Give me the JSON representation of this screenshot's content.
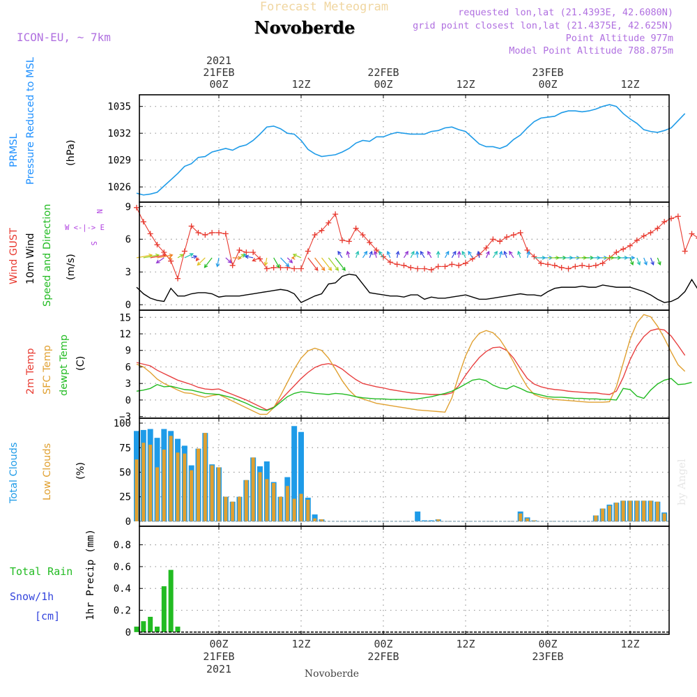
{
  "header": {
    "meteogram_title": "Forecast Meteogram",
    "station": "Novoberde",
    "model": "ICON-EU, ~ 7km",
    "info_lines": [
      "requested lon,lat (21.4393E, 42.6080N)",
      "grid point closest lon,lat (21.4375E, 42.625N)",
      "Point Altitude 977m",
      "Model Point Altitude 788.875m"
    ],
    "watermark": "by Angel"
  },
  "time_axis": {
    "top_year": "2021",
    "bottom_year": "2021",
    "ticks": [
      "00Z",
      "12Z",
      "00Z",
      "12Z",
      "00Z",
      "12Z"
    ],
    "date_labels": [
      "21FEB",
      "22FEB",
      "23FEB"
    ],
    "footer_station": "Novoberde"
  },
  "panels": {
    "pressure": {
      "labels": [
        "PRMSL",
        "Pressure Reduced to MSL"
      ],
      "unit": "(hPa)",
      "label_colors": [
        "#1e90ff",
        "#1e90ff"
      ]
    },
    "wind": {
      "labels": [
        "Wind GUST",
        "10m Wind",
        "Speed and Direction"
      ],
      "unit": "(m/s)",
      "label_colors": [
        "#e8392f",
        "#000000",
        "#22bb22"
      ],
      "compass": [
        "N",
        "W <-|-> E",
        "S"
      ]
    },
    "temp": {
      "labels": [
        "2m Temp",
        "SFC Temp",
        "dewpt Temp"
      ],
      "unit": "(C)",
      "label_colors": [
        "#e8392f",
        "#e0a030",
        "#22bb22"
      ]
    },
    "clouds": {
      "labels": [
        "Total Clouds",
        "Low Clouds"
      ],
      "unit": "(%)",
      "label_colors": [
        "#1e9be8",
        "#e0a030"
      ]
    },
    "precip": {
      "labels": [
        "Total Rain",
        "Snow/1h",
        "[cm]"
      ],
      "ylabel": "1hr Precip (mm)",
      "label_colors": [
        "#22bb22",
        "#3344dd",
        "#3344dd"
      ]
    }
  },
  "chart_data": [
    {
      "type": "line",
      "title": "PRMSL Pressure Reduced to MSL",
      "ylabel": "(hPa)",
      "ylim": [
        1024.3,
        1036.3
      ],
      "yticks": [
        1026,
        1029,
        1032,
        1035
      ],
      "grid": true,
      "series": [
        {
          "name": "PRMSL",
          "color": "#1e9be8",
          "values": [
            1025.3,
            1025.1,
            1025.2,
            1025.4,
            1026.1,
            1026.8,
            1027.5,
            1028.3,
            1028.6,
            1029.3,
            1029.4,
            1029.9,
            1030.1,
            1030.3,
            1030.1,
            1030.5,
            1030.7,
            1031.2,
            1031.9,
            1032.7,
            1032.8,
            1032.5,
            1032.0,
            1031.9,
            1031.2,
            1030.2,
            1029.7,
            1029.4,
            1029.5,
            1029.6,
            1029.9,
            1030.3,
            1030.9,
            1031.2,
            1031.1,
            1031.6,
            1031.6,
            1031.9,
            1032.1,
            1032.0,
            1031.9,
            1031.9,
            1031.9,
            1032.2,
            1032.3,
            1032.6,
            1032.7,
            1032.4,
            1032.2,
            1031.5,
            1030.8,
            1030.5,
            1030.5,
            1030.3,
            1030.6,
            1031.3,
            1031.8,
            1032.6,
            1033.3,
            1033.7,
            1033.8,
            1033.9,
            1034.3,
            1034.5,
            1034.5,
            1034.4,
            1034.5,
            1034.7,
            1035.0,
            1035.2,
            1035.0,
            1034.2,
            1033.6,
            1033.1,
            1032.4,
            1032.2,
            1032.1,
            1032.3,
            1032.6,
            1033.4,
            1034.2
          ]
        }
      ]
    },
    {
      "type": "line",
      "title": "Wind GUST / 10m Wind",
      "ylabel": "(m/s)",
      "ylim": [
        -0.5,
        9.4
      ],
      "yticks": [
        0,
        3,
        6,
        9
      ],
      "grid": true,
      "series": [
        {
          "name": "Wind GUST",
          "color": "#e8392f",
          "values": [
            8.9,
            7.6,
            6.5,
            5.5,
            4.8,
            4.0,
            2.4,
            4.9,
            7.2,
            6.6,
            6.4,
            6.6,
            6.6,
            6.5,
            3.6,
            5.0,
            4.8,
            4.8,
            4.2,
            3.3,
            3.4,
            3.4,
            3.4,
            3.3,
            3.3,
            4.9,
            6.4,
            6.8,
            7.5,
            8.3,
            5.9,
            5.8,
            7.0,
            6.4,
            5.7,
            5.0,
            4.4,
            3.9,
            3.7,
            3.6,
            3.4,
            3.3,
            3.3,
            3.2,
            3.5,
            3.5,
            3.7,
            3.6,
            3.8,
            4.2,
            4.6,
            5.2,
            6.0,
            5.8,
            6.2,
            6.4,
            6.6,
            5.0,
            4.4,
            3.8,
            3.7,
            3.6,
            3.4,
            3.3,
            3.5,
            3.6,
            3.5,
            3.6,
            3.8,
            4.3,
            4.8,
            5.1,
            5.4,
            5.9,
            6.3,
            6.6,
            7.0,
            7.6,
            7.9,
            8.1,
            4.9,
            6.5,
            6.1,
            7.4
          ]
        },
        {
          "name": "10m Wind",
          "color": "#000000",
          "values": [
            1.6,
            1.0,
            0.6,
            0.4,
            0.3,
            1.5,
            0.8,
            0.8,
            1.0,
            1.1,
            1.1,
            1.0,
            0.7,
            0.8,
            0.8,
            0.8,
            0.9,
            1.0,
            1.1,
            1.2,
            1.3,
            1.4,
            1.3,
            1.0,
            0.2,
            0.5,
            0.8,
            1.0,
            1.9,
            2.0,
            2.6,
            2.8,
            2.7,
            1.9,
            1.1,
            1.0,
            0.9,
            0.8,
            0.8,
            0.7,
            0.9,
            0.9,
            0.5,
            0.7,
            0.6,
            0.6,
            0.7,
            0.8,
            0.9,
            0.7,
            0.5,
            0.5,
            0.6,
            0.7,
            0.8,
            0.9,
            1.0,
            0.9,
            0.9,
            0.8,
            1.2,
            1.5,
            1.6,
            1.6,
            1.6,
            1.7,
            1.6,
            1.6,
            1.8,
            1.7,
            1.6,
            1.6,
            1.6,
            1.4,
            1.2,
            0.9,
            0.5,
            0.2,
            0.3,
            0.6,
            1.2,
            2.3,
            1.3,
            1.1,
            1.1
          ]
        }
      ]
    },
    {
      "type": "line",
      "title": "2m Temp / SFC Temp / dewpt Temp",
      "ylabel": "(C)",
      "ylim": [
        -3.3,
        16.3
      ],
      "yticks": [
        -3,
        0,
        3,
        6,
        9,
        12,
        15
      ],
      "grid": true,
      "series": [
        {
          "name": "2m Temp",
          "color": "#e84040",
          "values": [
            6.8,
            6.5,
            6.2,
            5.4,
            4.8,
            4.2,
            3.6,
            3.2,
            2.8,
            2.3,
            2.0,
            1.9,
            2.0,
            1.5,
            1.0,
            0.5,
            0.0,
            -0.6,
            -1.2,
            -1.8,
            -1.3,
            0.0,
            1.3,
            2.6,
            3.9,
            5.0,
            5.9,
            6.4,
            6.6,
            6.3,
            5.6,
            4.6,
            3.7,
            3.0,
            2.7,
            2.4,
            2.2,
            1.9,
            1.7,
            1.5,
            1.3,
            1.2,
            1.1,
            1.0,
            1.0,
            1.0,
            1.3,
            2.6,
            4.5,
            6.2,
            7.7,
            8.8,
            9.5,
            9.6,
            9.0,
            7.6,
            5.7,
            3.9,
            2.9,
            2.4,
            2.1,
            1.9,
            1.8,
            1.6,
            1.5,
            1.4,
            1.3,
            1.3,
            1.1,
            1.0,
            1.6,
            4.1,
            7.3,
            9.8,
            11.5,
            12.6,
            12.9,
            12.7,
            11.6,
            9.9,
            8.1
          ]
        },
        {
          "name": "SFC Temp",
          "color": "#e0a030",
          "values": [
            6.5,
            6.0,
            5.0,
            3.8,
            3.0,
            2.4,
            1.8,
            1.3,
            1.2,
            0.8,
            0.5,
            0.8,
            1.0,
            0.4,
            -0.2,
            -0.8,
            -1.4,
            -2.0,
            -2.6,
            -2.6,
            -1.4,
            0.8,
            3.2,
            5.6,
            7.6,
            8.9,
            9.4,
            9.0,
            7.6,
            5.6,
            3.5,
            1.8,
            0.6,
            0.2,
            -0.2,
            -0.6,
            -0.8,
            -1.0,
            -1.2,
            -1.4,
            -1.6,
            -1.8,
            -1.9,
            -2.0,
            -2.1,
            -2.2,
            0.4,
            4.4,
            8.0,
            10.6,
            12.1,
            12.6,
            12.2,
            11.0,
            9.1,
            6.9,
            4.5,
            2.4,
            1.0,
            0.5,
            0.3,
            0.1,
            0.0,
            -0.1,
            -0.2,
            -0.3,
            -0.4,
            -0.4,
            -0.4,
            -0.3,
            2.4,
            6.7,
            11.0,
            14.0,
            15.5,
            15.1,
            13.4,
            11.2,
            8.7,
            6.4,
            5.2
          ]
        },
        {
          "name": "dewpt Temp",
          "color": "#22bb22",
          "values": [
            1.6,
            1.8,
            2.1,
            2.8,
            2.4,
            2.5,
            2.2,
            1.9,
            1.8,
            1.5,
            1.2,
            1.1,
            1.0,
            0.7,
            0.4,
            -0.1,
            -0.6,
            -1.2,
            -1.7,
            -1.9,
            -1.4,
            -0.4,
            0.6,
            1.2,
            1.5,
            1.4,
            1.2,
            1.1,
            1.0,
            1.2,
            1.1,
            0.9,
            0.6,
            0.4,
            0.3,
            0.2,
            0.2,
            0.1,
            0.1,
            0.1,
            0.1,
            0.2,
            0.4,
            0.6,
            0.9,
            1.2,
            1.6,
            2.2,
            2.9,
            3.6,
            3.8,
            3.5,
            2.7,
            2.2,
            2.0,
            2.6,
            2.1,
            1.5,
            1.2,
            0.9,
            0.6,
            0.5,
            0.5,
            0.4,
            0.3,
            0.3,
            0.2,
            0.2,
            0.1,
            0.1,
            0.0,
            2.1,
            1.9,
            0.7,
            0.3,
            1.8,
            2.9,
            3.6,
            3.9,
            2.8,
            2.9,
            3.2
          ]
        }
      ]
    },
    {
      "type": "bar",
      "title": "Total Clouds / Low Clouds",
      "ylabel": "(%)",
      "ylim": [
        -5,
        105
      ],
      "yticks": [
        0,
        25,
        50,
        75,
        100
      ],
      "grid": true,
      "series": [
        {
          "name": "Total Clouds",
          "color": "#1e9be8",
          "values": [
            92,
            93,
            94,
            85,
            94,
            92,
            84,
            77,
            57,
            74,
            90,
            58,
            55,
            25,
            20,
            25,
            42,
            65,
            56,
            61,
            40,
            25,
            45,
            97,
            91,
            24,
            7,
            2,
            0,
            0,
            0,
            0,
            0,
            0,
            0,
            0,
            0,
            0,
            0,
            0,
            0,
            10,
            1,
            1,
            2,
            0,
            0,
            0,
            0,
            0,
            0,
            0,
            0,
            0,
            0,
            0,
            10,
            4,
            1,
            0,
            0,
            0,
            0,
            0,
            0,
            0,
            0,
            6,
            13,
            17,
            19,
            21,
            21,
            21,
            21,
            21,
            20,
            9,
            0,
            0,
            0,
            0,
            0,
            0,
            0,
            0
          ]
        },
        {
          "name": "Low Clouds",
          "color": "#e0a030",
          "values": [
            63,
            80,
            78,
            55,
            73,
            87,
            70,
            69,
            52,
            74,
            90,
            57,
            55,
            25,
            20,
            25,
            42,
            65,
            50,
            43,
            39,
            25,
            36,
            23,
            28,
            22,
            3,
            2,
            0,
            0,
            0,
            0,
            0,
            0,
            0,
            0,
            0,
            0,
            0,
            0,
            0,
            0,
            0,
            0,
            2,
            0,
            0,
            0,
            0,
            0,
            0,
            0,
            0,
            0,
            0,
            0,
            8,
            3,
            1,
            0,
            0,
            0,
            0,
            0,
            0,
            0,
            0,
            6,
            13,
            16,
            19,
            21,
            21,
            21,
            21,
            21,
            20,
            8,
            0,
            0,
            0,
            0,
            0,
            0,
            0,
            0
          ]
        }
      ]
    },
    {
      "type": "bar",
      "title": "1hr Precip",
      "ylabel": "1hr Precip (mm)",
      "ylim": [
        -0.02,
        0.97
      ],
      "yticks": [
        0,
        0.2,
        0.4,
        0.6,
        0.8
      ],
      "grid": true,
      "series": [
        {
          "name": "Total Rain",
          "color": "#22bb22",
          "values": [
            0.05,
            0.1,
            0.14,
            0.05,
            0.42,
            0.57,
            0.05,
            0,
            0,
            0,
            0,
            0,
            0,
            0,
            0,
            0,
            0,
            0,
            0,
            0,
            0,
            0,
            0,
            0,
            0,
            0,
            0,
            0,
            0,
            0,
            0,
            0,
            0,
            0,
            0,
            0,
            0,
            0,
            0,
            0,
            0,
            0,
            0,
            0,
            0,
            0,
            0,
            0,
            0,
            0,
            0,
            0,
            0,
            0,
            0,
            0,
            0,
            0,
            0,
            0,
            0,
            0,
            0,
            0,
            0,
            0,
            0,
            0,
            0,
            0,
            0,
            0,
            0,
            0,
            0,
            0,
            0,
            0,
            0,
            0,
            0,
            0,
            0,
            0,
            0,
            0
          ]
        },
        {
          "name": "Snow/1h",
          "color": "#3344dd",
          "values": []
        }
      ]
    }
  ]
}
